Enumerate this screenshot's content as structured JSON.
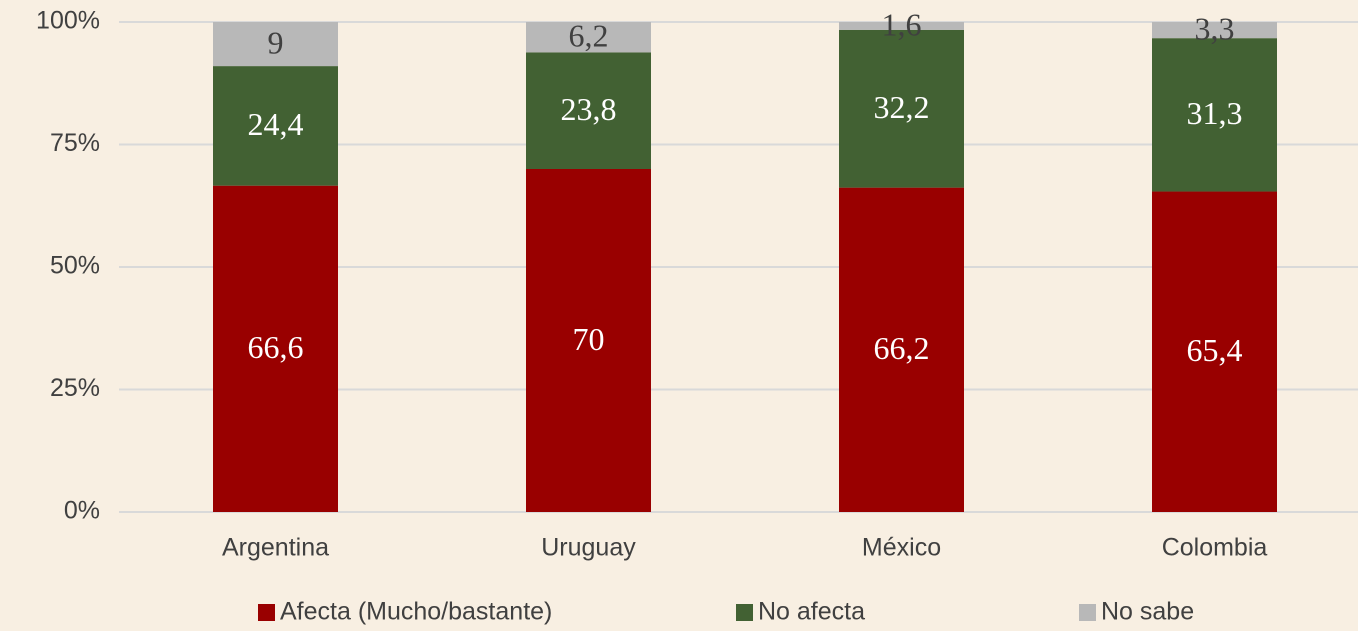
{
  "chart_data": {
    "type": "stacked_bar",
    "categories": [
      "Argentina",
      "Uruguay",
      "México",
      "Colombia"
    ],
    "series": [
      {
        "name": "Afecta (Mucho/bastante)",
        "color": "#990000",
        "values": [
          66.6,
          70,
          66.2,
          65.4
        ],
        "value_labels": [
          "66,6",
          "70",
          "66,2",
          "65,4"
        ]
      },
      {
        "name": "No afecta",
        "color": "#426133",
        "values": [
          24.4,
          23.8,
          32.2,
          31.3
        ],
        "value_labels": [
          "24,4",
          "23,8",
          "32,2",
          "31,3"
        ]
      },
      {
        "name": "No sabe",
        "color": "#b8b8b8",
        "values": [
          9,
          6.2,
          1.6,
          3.3
        ],
        "value_labels": [
          "9",
          "6,2",
          "1,6",
          "3,3"
        ]
      }
    ],
    "ylim": [
      0,
      100
    ],
    "yticks": [
      {
        "value": 0,
        "label": "0%"
      },
      {
        "value": 25,
        "label": "25%"
      },
      {
        "value": 50,
        "label": "50%"
      },
      {
        "value": 75,
        "label": "75%"
      },
      {
        "value": 100,
        "label": "100%"
      }
    ],
    "grid": true,
    "legend": "bottom"
  }
}
